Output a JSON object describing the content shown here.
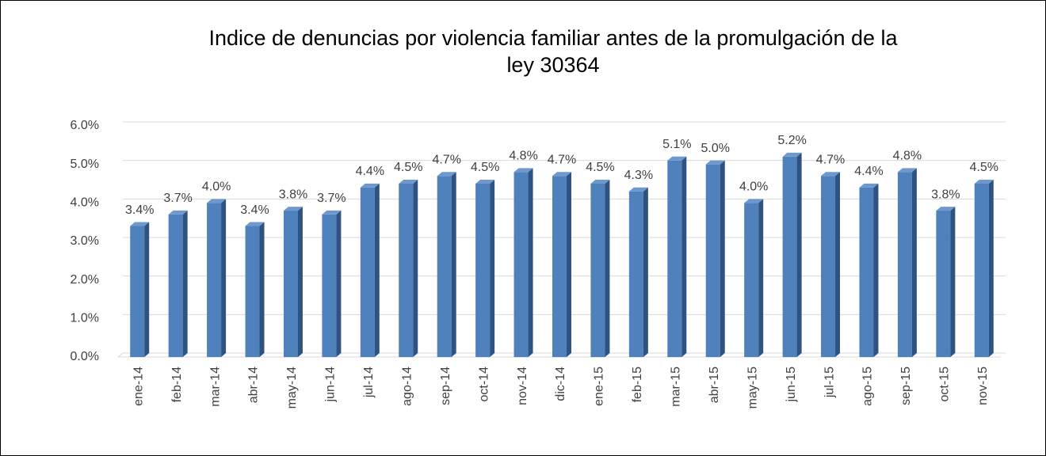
{
  "chart_data": {
    "type": "bar3d",
    "title": "Indice de denuncias por violencia familiar antes de la promulgación de la ley 30364",
    "categories": [
      "ene-14",
      "feb-14",
      "mar-14",
      "abr-14",
      "may-14",
      "jun-14",
      "jul-14",
      "ago-14",
      "sep-14",
      "oct-14",
      "nov-14",
      "dic-14",
      "ene-15",
      "feb-15",
      "mar-15",
      "abr-15",
      "may-15",
      "jun-15",
      "jul-15",
      "ago-15",
      "sep-15",
      "oct-15",
      "nov-15"
    ],
    "values": [
      3.4,
      3.7,
      4.0,
      3.4,
      3.8,
      3.7,
      4.4,
      4.5,
      4.7,
      4.5,
      4.8,
      4.7,
      4.5,
      4.3,
      5.1,
      5.0,
      4.0,
      5.2,
      4.7,
      4.4,
      4.8,
      3.8,
      4.5
    ],
    "value_labels": [
      "3.4%",
      "3.7%",
      "4.0%",
      "3.4%",
      "3.8%",
      "3.7%",
      "4.4%",
      "4.5%",
      "4.7%",
      "4.5%",
      "4.8%",
      "4.7%",
      "4.5%",
      "4.3%",
      "5.1%",
      "5.0%",
      "4.0%",
      "5.2%",
      "4.7%",
      "4.4%",
      "4.8%",
      "3.8%",
      "4.5%"
    ],
    "color": "#4f81bd",
    "ylim": [
      0,
      6
    ],
    "yticks": [
      {
        "value": 0,
        "label": "0.0%"
      },
      {
        "value": 1,
        "label": "1.0%"
      },
      {
        "value": 2,
        "label": "2.0%"
      },
      {
        "value": 3,
        "label": "3.0%"
      },
      {
        "value": 4,
        "label": "4.0%"
      },
      {
        "value": 5,
        "label": "5.0%"
      },
      {
        "value": 6,
        "label": "6.0%"
      }
    ],
    "grid": true
  }
}
